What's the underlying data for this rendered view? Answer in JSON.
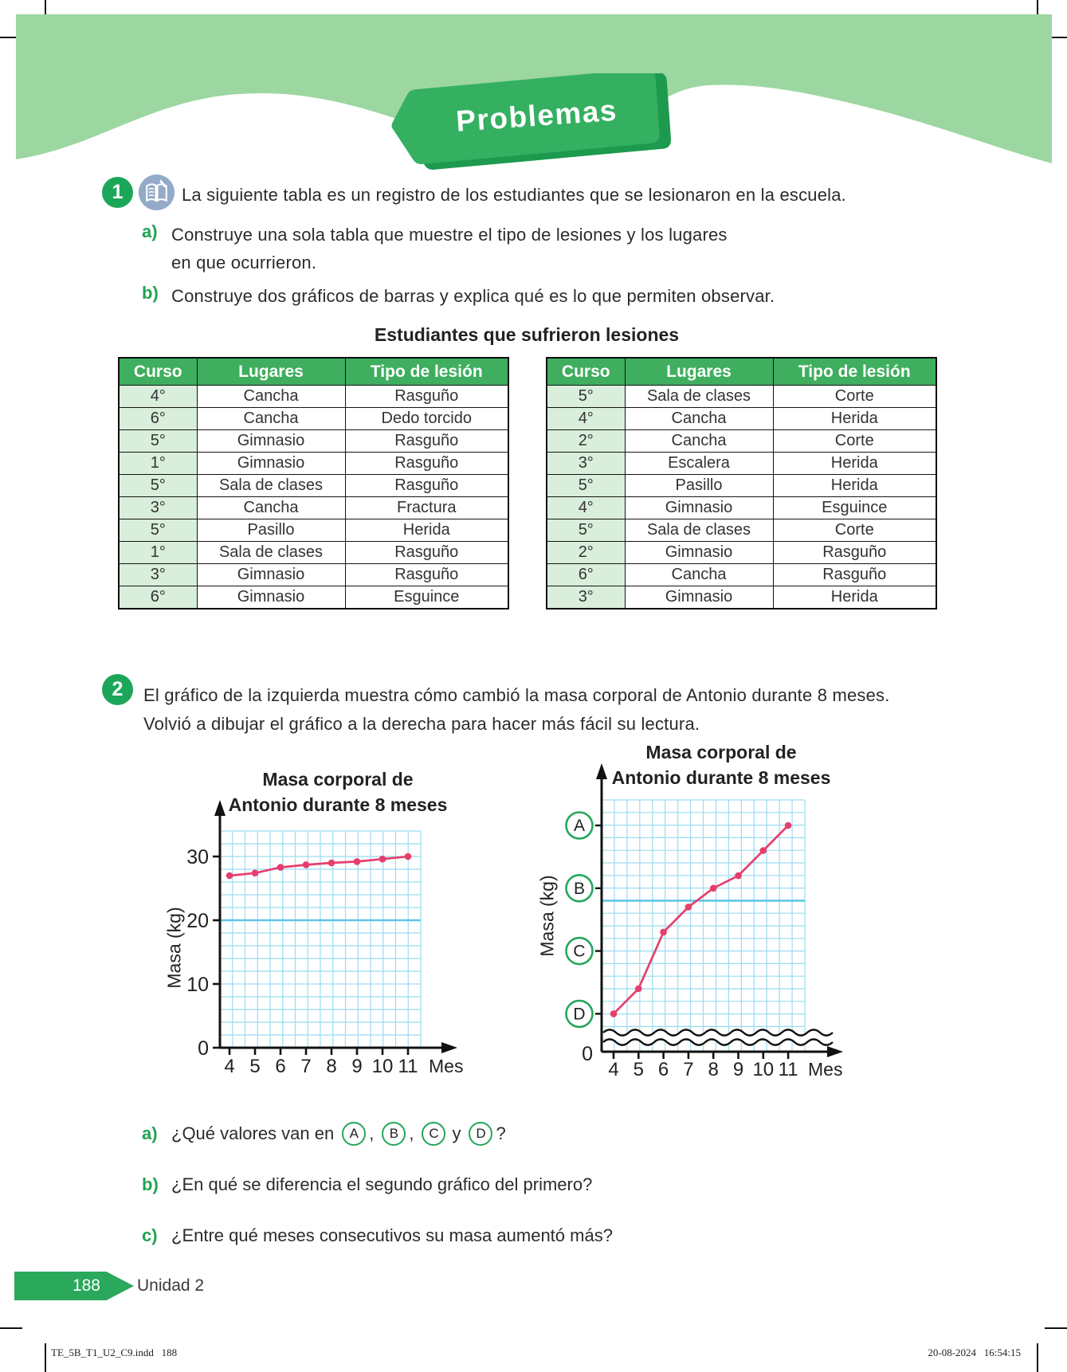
{
  "banner": {
    "title": "Problemas"
  },
  "problem1": {
    "number": "1",
    "icon": "book-pencil-icon",
    "intro": "La siguiente tabla es un registro de los estudiantes que se lesionaron en la escuela.",
    "items": [
      {
        "label": "a)",
        "lines": [
          "Construye una sola tabla que muestre el tipo de lesiones y los lugares",
          "en que ocurrieron."
        ]
      },
      {
        "label": "b)",
        "lines": [
          "Construye dos gráficos de barras y explica qué es lo que permiten observar."
        ]
      }
    ]
  },
  "table_title": "Estudiantes que sufrieron lesiones",
  "tables": {
    "headers": [
      "Curso",
      "Lugares",
      "Tipo de lesión"
    ],
    "left_rows": [
      [
        "4°",
        "Cancha",
        "Rasguño"
      ],
      [
        "6°",
        "Cancha",
        "Dedo torcido"
      ],
      [
        "5°",
        "Gimnasio",
        "Rasguño"
      ],
      [
        "1°",
        "Gimnasio",
        "Rasguño"
      ],
      [
        "5°",
        "Sala de clases",
        "Rasguño"
      ],
      [
        "3°",
        "Cancha",
        "Fractura"
      ],
      [
        "5°",
        "Pasillo",
        "Herida"
      ],
      [
        "1°",
        "Sala de clases",
        "Rasguño"
      ],
      [
        "3°",
        "Gimnasio",
        "Rasguño"
      ],
      [
        "6°",
        "Gimnasio",
        "Esguince"
      ]
    ],
    "right_rows": [
      [
        "5°",
        "Sala de clases",
        "Corte"
      ],
      [
        "4°",
        "Cancha",
        "Herida"
      ],
      [
        "2°",
        "Cancha",
        "Corte"
      ],
      [
        "3°",
        "Escalera",
        "Herida"
      ],
      [
        "5°",
        "Pasillo",
        "Herida"
      ],
      [
        "4°",
        "Gimnasio",
        "Esguince"
      ],
      [
        "5°",
        "Sala de clases",
        "Corte"
      ],
      [
        "2°",
        "Gimnasio",
        "Rasguño"
      ],
      [
        "6°",
        "Cancha",
        "Rasguño"
      ],
      [
        "3°",
        "Gimnasio",
        "Herida"
      ]
    ]
  },
  "problem2": {
    "number": "2",
    "lines": [
      "El gráfico de la izquierda muestra cómo cambió la masa corporal de Antonio durante 8 meses.",
      "Volvió a dibujar el gráfico a la derecha para hacer más fácil su lectura."
    ],
    "question_a": {
      "label": "a)",
      "prefix": "¿Qué valores van en",
      "letters": [
        "A",
        "B",
        "C",
        "D"
      ],
      "sep": ",",
      "conj": "y",
      "suffix": "?"
    },
    "question_b": {
      "label": "b)",
      "text": "¿En qué se diferencia el segundo gráfico del primero?"
    },
    "question_c": {
      "label": "c)",
      "text": "¿Entre qué meses consecutivos su masa aumentó más?"
    }
  },
  "chart_data": [
    {
      "type": "line",
      "title": "Masa corporal de Antonio durante 8 meses",
      "title_lines": [
        "Masa corporal de",
        "Antonio durante 8 meses"
      ],
      "ylabel": "Masa (kg)",
      "xlabel": "Mes",
      "x": [
        4,
        5,
        6,
        7,
        8,
        9,
        10,
        11
      ],
      "values": [
        27,
        27.4,
        28.3,
        28.7,
        29,
        29.2,
        29.6,
        30
      ],
      "yticks": [
        0,
        10,
        20,
        30
      ],
      "ylim": [
        0,
        34
      ],
      "grid": true,
      "legend": "none",
      "line_color": "#e63e6d"
    },
    {
      "type": "line",
      "title": "Masa corporal de Antonio durante 8 meses",
      "title_lines": [
        "Masa corporal de",
        "Antonio durante 8 meses"
      ],
      "ylabel": "Masa (kg)",
      "xlabel": "Mes",
      "x": [
        4,
        5,
        6,
        7,
        8,
        9,
        10,
        11
      ],
      "values": [
        27,
        27.4,
        28.3,
        28.7,
        29,
        29.2,
        29.6,
        30
      ],
      "letter_ticks": [
        {
          "label": "A",
          "value": 30
        },
        {
          "label": "B",
          "value": 29
        },
        {
          "label": "C",
          "value": 28
        },
        {
          "label": "D",
          "value": 27
        }
      ],
      "origin_label": "0",
      "axis_break": true,
      "ylim": [
        26.4,
        30.4
      ],
      "grid": true,
      "legend": "none",
      "line_color": "#e63e6d"
    }
  ],
  "footer": {
    "page": "188",
    "unit": "Unidad 2"
  },
  "print_info": {
    "left": "TE_5B_T1_U2_C9.indd   188",
    "right": "20-08-2024   16:54:15"
  },
  "colors": {
    "banner_green": "#9cd7a1",
    "ribbon_green": "#35b061",
    "ribbon_shadow": "#1d9a4e",
    "badge_green": "#1ca65a",
    "table_header_green": "#3fae5e",
    "table_cell_green": "#d9eedb",
    "accent_green": "#21a253",
    "grid_blue": "#9bdcf1",
    "grid_blue_heavy": "#5fc6e9",
    "line_pink": "#e63e6d",
    "icon_blue": "#93aac9"
  }
}
